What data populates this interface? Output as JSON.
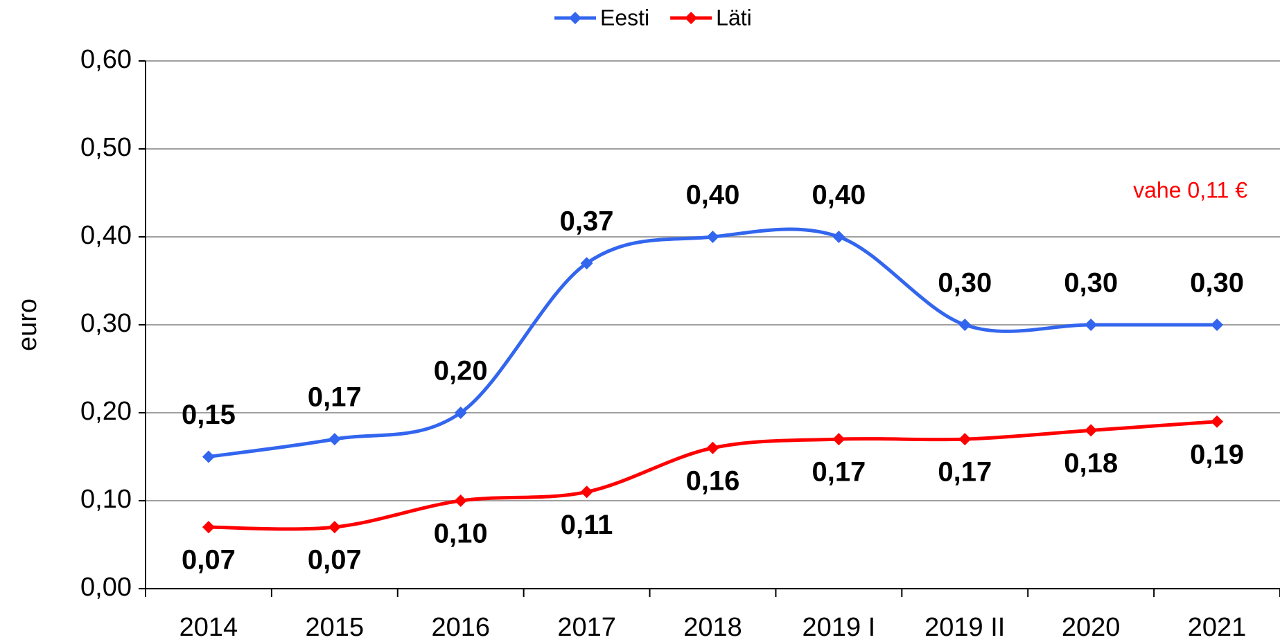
{
  "chart_data": {
    "type": "line",
    "categories": [
      "2014",
      "2015",
      "2016",
      "2017",
      "2018",
      "2019 I",
      "2019 II",
      "2020",
      "2021"
    ],
    "series": [
      {
        "name": "Eesti",
        "color": "#3366ee",
        "values": [
          0.15,
          0.17,
          0.2,
          0.37,
          0.4,
          0.4,
          0.3,
          0.3,
          0.3
        ],
        "value_labels": [
          "0,15",
          "0,17",
          "0,20",
          "0,37",
          "0,40",
          "0,40",
          "0,30",
          "0,30",
          "0,30"
        ]
      },
      {
        "name": "Läti",
        "color": "#ff0000",
        "values": [
          0.07,
          0.07,
          0.1,
          0.11,
          0.16,
          0.17,
          0.17,
          0.18,
          0.19
        ],
        "value_labels": [
          "0,07",
          "0,07",
          "0,10",
          "0,11",
          "0,16",
          "0,17",
          "0,17",
          "0,18",
          "0,19"
        ]
      }
    ],
    "ylabel": "euro",
    "ylim": [
      0,
      0.6
    ],
    "yticks": [
      {
        "value": 0,
        "label": "0,00"
      },
      {
        "value": 0.1,
        "label": "0,10"
      },
      {
        "value": 0.2,
        "label": "0,20"
      },
      {
        "value": 0.3,
        "label": "0,30"
      },
      {
        "value": 0.4,
        "label": "0,40"
      },
      {
        "value": 0.5,
        "label": "0,50"
      },
      {
        "value": 0.6,
        "label": "0,60"
      }
    ],
    "grid": true,
    "smooth": true,
    "legend": "top",
    "annotation": {
      "text": "vahe 0,11 €",
      "color": "#ff0000"
    }
  }
}
